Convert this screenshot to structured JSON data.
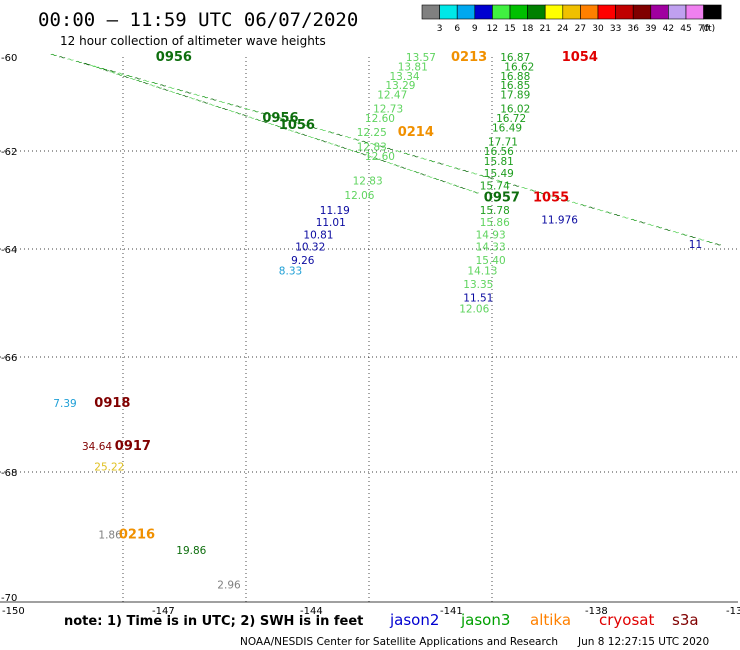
{
  "header": {
    "title": "00:00 – 11:59 UTC 06/07/2020",
    "subtitle": "12 hour collection of altimeter wave heights"
  },
  "legend": {
    "unit": "(ft)",
    "bins": [
      {
        "label": "3",
        "color": "#808080"
      },
      {
        "label": "6",
        "color": "#00e8e8"
      },
      {
        "label": "9",
        "color": "#00a8f0"
      },
      {
        "label": "12",
        "color": "#0000d0"
      },
      {
        "label": "15",
        "color": "#40f040"
      },
      {
        "label": "18",
        "color": "#00c000"
      },
      {
        "label": "21",
        "color": "#008000"
      },
      {
        "label": "24",
        "color": "#ffff00"
      },
      {
        "label": "27",
        "color": "#f0c000"
      },
      {
        "label": "30",
        "color": "#ff8000"
      },
      {
        "label": "33",
        "color": "#ff0000"
      },
      {
        "label": "36",
        "color": "#c00000"
      },
      {
        "label": "39",
        "color": "#800000"
      },
      {
        "label": "42",
        "color": "#a000a0"
      },
      {
        "label": "45",
        "color": "#c0a0f0"
      },
      {
        "label": "70",
        "color": "#f080f0"
      },
      {
        "label": "",
        "color": "#000000"
      }
    ]
  },
  "axes": {
    "lat_labels": [
      "-60",
      "-62",
      "-64",
      "-66",
      "-68",
      "-70"
    ],
    "lon_labels": [
      "-150",
      "-147",
      "-144",
      "-141",
      "-138",
      "-13"
    ]
  },
  "colors": {
    "gray": "#808080",
    "lightblue": "#1e9fd6",
    "blue": "#0a0aa0",
    "lightgreen": "#5fd45f",
    "green": "#1e9e1e",
    "darkgreen": "#0e6e0e",
    "yellow": "#e0c020",
    "orange": "#f09000",
    "red": "#e00000",
    "darkred": "#800000"
  },
  "annotations": [
    {
      "text": "13.57",
      "color": "lightgreen",
      "lon": -140.1,
      "lat": -60.0
    },
    {
      "text": "0213",
      "color": "orange",
      "lon": -139.0,
      "lat": -60.0,
      "time": true
    },
    {
      "text": "16.87",
      "color": "green",
      "lon": -137.8,
      "lat": -60.0
    },
    {
      "text": "1054",
      "color": "red",
      "lon": -136.3,
      "lat": -60.0,
      "time": true
    },
    {
      "text": "13.81",
      "color": "lightgreen",
      "lon": -140.3,
      "lat": -60.2
    },
    {
      "text": "16.62",
      "color": "green",
      "lon": -137.7,
      "lat": -60.2
    },
    {
      "text": "13.34",
      "color": "lightgreen",
      "lon": -140.5,
      "lat": -60.4
    },
    {
      "text": "16.88",
      "color": "green",
      "lon": -137.8,
      "lat": -60.4
    },
    {
      "text": "13.29",
      "color": "lightgreen",
      "lon": -140.6,
      "lat": -60.6
    },
    {
      "text": "16.85",
      "color": "green",
      "lon": -137.8,
      "lat": -60.6
    },
    {
      "text": "12.47",
      "color": "lightgreen",
      "lon": -140.8,
      "lat": -60.8
    },
    {
      "text": "17.89",
      "color": "green",
      "lon": -137.8,
      "lat": -60.8
    },
    {
      "text": "12.73",
      "color": "lightgreen",
      "lon": -140.9,
      "lat": -61.1
    },
    {
      "text": "16.02",
      "color": "green",
      "lon": -137.8,
      "lat": -61.1
    },
    {
      "text": "12.60",
      "color": "lightgreen",
      "lon": -141.1,
      "lat": -61.3
    },
    {
      "text": "16.72",
      "color": "green",
      "lon": -137.9,
      "lat": -61.3
    },
    {
      "text": "12.25",
      "color": "lightgreen",
      "lon": -141.3,
      "lat": -61.6
    },
    {
      "text": "0214",
      "color": "orange",
      "lon": -140.3,
      "lat": -61.6,
      "time": true
    },
    {
      "text": "16.49",
      "color": "green",
      "lon": -138.0,
      "lat": -61.5
    },
    {
      "text": "12.83",
      "color": "lightgreen",
      "lon": -141.3,
      "lat": -61.9
    },
    {
      "text": "17.71",
      "color": "green",
      "lon": -138.1,
      "lat": -61.8
    },
    {
      "text": "12.60",
      "color": "lightgreen",
      "lon": -141.1,
      "lat": -62.1
    },
    {
      "text": "16.56",
      "color": "green",
      "lon": -138.2,
      "lat": -62.0
    },
    {
      "text": "15.81",
      "color": "green",
      "lon": -138.2,
      "lat": -62.2
    },
    {
      "text": "12.83",
      "color": "lightgreen",
      "lon": -141.4,
      "lat": -62.6
    },
    {
      "text": "15.49",
      "color": "green",
      "lon": -138.2,
      "lat": -62.45
    },
    {
      "text": "12.06",
      "color": "lightgreen",
      "lon": -141.6,
      "lat": -62.9
    },
    {
      "text": "15.74",
      "color": "green",
      "lon": -138.3,
      "lat": -62.7
    },
    {
      "text": "0957",
      "color": "darkgreen",
      "lon": -138.2,
      "lat": -62.95,
      "time": true
    },
    {
      "text": "1055",
      "color": "red",
      "lon": -137.0,
      "lat": -62.95,
      "time": true
    },
    {
      "text": "11.19",
      "color": "blue",
      "lon": -142.2,
      "lat": -63.2
    },
    {
      "text": "15.78",
      "color": "green",
      "lon": -138.3,
      "lat": -63.2
    },
    {
      "text": "11.01",
      "color": "blue",
      "lon": -142.3,
      "lat": -63.45
    },
    {
      "text": "15.86",
      "color": "lightgreen",
      "lon": -138.3,
      "lat": -63.45
    },
    {
      "text": "10.81",
      "color": "blue",
      "lon": -142.6,
      "lat": -63.7
    },
    {
      "text": "14.93",
      "color": "lightgreen",
      "lon": -138.4,
      "lat": -63.7
    },
    {
      "text": "11.976",
      "color": "blue",
      "lon": -136.8,
      "lat": -63.4
    },
    {
      "text": "10.32",
      "color": "blue",
      "lon": -142.8,
      "lat": -63.95
    },
    {
      "text": "14.33",
      "color": "lightgreen",
      "lon": -138.4,
      "lat": -63.95
    },
    {
      "text": "9.26",
      "color": "blue",
      "lon": -142.9,
      "lat": -64.2
    },
    {
      "text": "15.40",
      "color": "lightgreen",
      "lon": -138.4,
      "lat": -64.2
    },
    {
      "text": "8.33",
      "color": "lightblue",
      "lon": -143.2,
      "lat": -64.4
    },
    {
      "text": "14.13",
      "color": "lightgreen",
      "lon": -138.6,
      "lat": -64.4
    },
    {
      "text": "13.35",
      "color": "lightgreen",
      "lon": -138.7,
      "lat": -64.65
    },
    {
      "text": "11.51",
      "color": "blue",
      "lon": -138.7,
      "lat": -64.9
    },
    {
      "text": "12.06",
      "color": "lightgreen",
      "lon": -138.8,
      "lat": -65.1
    },
    {
      "text": "11",
      "color": "blue",
      "lon": -133.2,
      "lat": -63.9
    },
    {
      "text": "0956",
      "color": "darkgreen",
      "lon": -146.2,
      "lat": -60.0,
      "time": true
    },
    {
      "text": "0956",
      "color": "darkgreen",
      "lon": -143.6,
      "lat": -61.3,
      "time": true
    },
    {
      "text": "1056",
      "color": "darkgreen",
      "lon": -143.2,
      "lat": -61.45,
      "time": true
    },
    {
      "text": "7.39",
      "color": "lightblue",
      "lon": -148.7,
      "lat": -66.8
    },
    {
      "text": "0918",
      "color": "darkred",
      "lon": -147.7,
      "lat": -66.8,
      "time": true
    },
    {
      "text": "34.64",
      "color": "darkred",
      "lon": -148.0,
      "lat": -67.55
    },
    {
      "text": "0917",
      "color": "darkred",
      "lon": -147.2,
      "lat": -67.55,
      "time": true
    },
    {
      "text": "25.22",
      "color": "yellow",
      "lon": -147.7,
      "lat": -67.9
    },
    {
      "text": "1.86",
      "color": "gray",
      "lon": -147.6,
      "lat": -69.0
    },
    {
      "text": "0216",
      "color": "orange",
      "lon": -147.1,
      "lat": -69.0,
      "time": true
    },
    {
      "text": "19.86",
      "color": "darkgreen",
      "lon": -145.7,
      "lat": -69.25
    },
    {
      "text": "2.96",
      "color": "gray",
      "lon": -144.7,
      "lat": -69.8
    }
  ],
  "footer": {
    "note": "note: 1) Time is in UTC; 2) SWH is in feet",
    "satellites": [
      {
        "name": "jason2",
        "color": "#0000d0"
      },
      {
        "name": "jason3",
        "color": "#00a000"
      },
      {
        "name": "altika",
        "color": "#ff8000"
      },
      {
        "name": "cryosat",
        "color": "#e00000"
      },
      {
        "name": "s3a",
        "color": "#800000"
      }
    ],
    "credit": "NOAA/NESDIS Center for Satellite Applications and Research",
    "timestamp": "Jun  8 12:27:15 UTC 2020"
  }
}
